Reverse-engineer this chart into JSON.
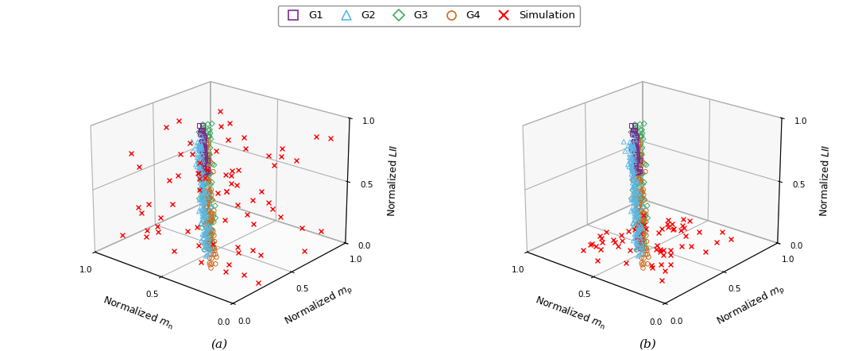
{
  "groups": {
    "G1": {
      "color": "#7B2D8B",
      "marker": "s",
      "label": "G1"
    },
    "G2": {
      "color": "#5BB8E8",
      "marker": "^",
      "label": "G2"
    },
    "G3": {
      "color": "#3DAA5E",
      "marker": "D",
      "label": "G3"
    },
    "G4": {
      "color": "#D2691E",
      "marker": "o",
      "label": "G4"
    },
    "Simulation": {
      "color": "#FF0000",
      "marker": "x",
      "label": "Simulation"
    }
  },
  "xlabel": "Normalized $m_{\\mathrm{n}}$",
  "ylabel": "Normalized $m_{\\mathrm{p}}$",
  "zlabel": "Normalized $LII$",
  "subplot_labels": [
    "(a)",
    "(b)"
  ],
  "background_color": "#ffffff",
  "figsize": [
    10.8,
    4.42
  ],
  "dpi": 100,
  "elev": 22,
  "azim": -50
}
